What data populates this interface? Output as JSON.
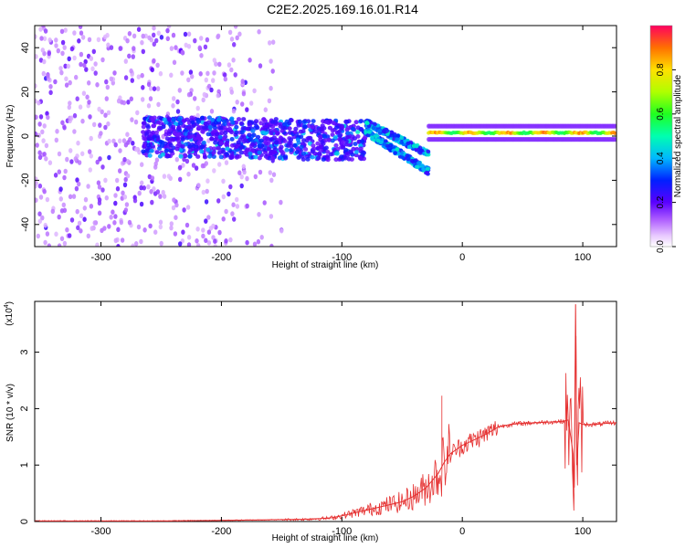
{
  "title": "C2E2.2025.169.16.01.R14",
  "chart_data": [
    {
      "type": "heatmap",
      "xlabel": "Height of straight line (km)",
      "ylabel": "Frequency (Hz)",
      "xlim": [
        -355,
        128
      ],
      "ylim": [
        -50,
        50
      ],
      "x_ticks": [
        -300,
        -200,
        -100,
        0,
        100
      ],
      "y_ticks": [
        -40,
        -20,
        0,
        20,
        40
      ],
      "colorbar": {
        "label": "Normalized spectral amplitude",
        "range": [
          0.0,
          1.0
        ],
        "ticks": [
          "0.0",
          "0.2",
          "0.4",
          "0.6",
          "0.8"
        ],
        "tick_values": [
          0.0,
          0.2,
          0.4,
          0.6,
          0.8
        ]
      },
      "features": [
        {
          "description": "sparse purple scatter",
          "x_range": [
            -355,
            -150
          ],
          "freq_range": [
            -50,
            50
          ],
          "amplitude": 0.1
        },
        {
          "description": "broad band around 0 Hz",
          "x_range": [
            -265,
            -80
          ],
          "freq_range": [
            -10,
            10
          ],
          "amplitude": 0.35
        },
        {
          "description": "drifting band",
          "x_range": [
            -80,
            -30
          ],
          "freq_range": [
            -15,
            8
          ],
          "amplitude": 0.45
        },
        {
          "description": "narrow strong band near 1 Hz",
          "x_range": [
            -25,
            128
          ],
          "freq_center": 1,
          "amplitude": 0.95
        }
      ]
    },
    {
      "type": "line",
      "xlabel": "Height of straight line (km)",
      "ylabel": "SNR (10 * v/v)",
      "y_multiplier_label": "(x10",
      "y_multiplier_exponent": "4",
      "y_multiplier_close": ")",
      "xlim": [
        -355,
        128
      ],
      "ylim": [
        0,
        3.9
      ],
      "x_ticks": [
        -300,
        -200,
        -100,
        0,
        100
      ],
      "y_ticks": [
        0,
        1,
        2,
        3
      ],
      "color": "#e53030",
      "x": [
        -355,
        -250,
        -200,
        -160,
        -130,
        -110,
        -100,
        -90,
        -80,
        -70,
        -60,
        -50,
        -40,
        -30,
        -20,
        -15,
        -10,
        0,
        10,
        20,
        30,
        40,
        50,
        60,
        70,
        80,
        85,
        88,
        90,
        92,
        93,
        94,
        95,
        97,
        100,
        110,
        120,
        128
      ],
      "y": [
        0.01,
        0.01,
        0.02,
        0.03,
        0.04,
        0.06,
        0.1,
        0.15,
        0.2,
        0.25,
        0.3,
        0.35,
        0.45,
        0.6,
        0.85,
        1.05,
        1.2,
        1.35,
        1.45,
        1.55,
        1.68,
        1.72,
        1.74,
        1.75,
        1.76,
        1.77,
        1.78,
        1.8,
        1.5,
        1.2,
        0.6,
        3.85,
        1.0,
        1.75,
        1.72,
        1.72,
        1.74,
        1.75
      ],
      "spikes": [
        {
          "x": -17,
          "y": 2.23
        },
        {
          "x": 94,
          "y": 3.85
        },
        {
          "x": 92,
          "y": 0.55
        }
      ]
    }
  ]
}
